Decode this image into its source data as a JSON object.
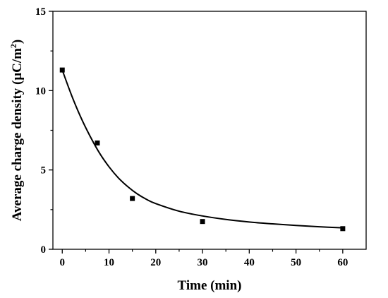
{
  "chart_data": {
    "type": "scatter",
    "xlabel": "Time (min)",
    "ylabel": {
      "prefix": "Average  charge density (μC/m",
      "superscript": "2",
      "suffix": ")"
    },
    "xlim": [
      -2,
      65
    ],
    "ylim": [
      0,
      15
    ],
    "xticks": [
      0,
      10,
      20,
      30,
      40,
      50,
      60
    ],
    "yticks": [
      0,
      5,
      10,
      15
    ],
    "grid": false,
    "legend": "none",
    "series": [
      {
        "kind": "points",
        "marker": "square",
        "color": "#000000",
        "x": [
          0,
          7.5,
          15,
          30,
          60
        ],
        "y": [
          11.3,
          6.7,
          3.2,
          1.75,
          1.3
        ]
      },
      {
        "kind": "fit-line",
        "color": "#000000",
        "x": [
          0,
          2,
          4,
          6,
          8,
          10,
          12,
          14,
          16,
          18,
          20,
          25,
          30,
          35,
          40,
          45,
          50,
          55,
          60
        ],
        "y": [
          11.3,
          9.7,
          8.3,
          7.1,
          6.05,
          5.2,
          4.5,
          3.95,
          3.5,
          3.15,
          2.88,
          2.4,
          2.1,
          1.88,
          1.72,
          1.6,
          1.5,
          1.42,
          1.35
        ]
      }
    ]
  }
}
